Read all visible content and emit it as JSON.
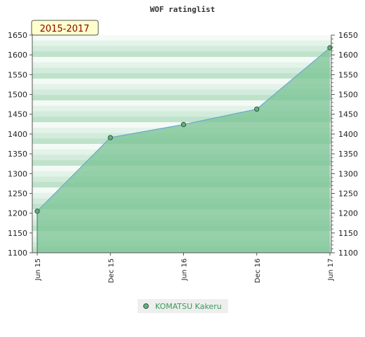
{
  "chart_data": {
    "type": "area",
    "title": "WOF ratinglist",
    "period_label": "2015-2017",
    "x": [
      "Jun 15",
      "Dec 15",
      "Jun 16",
      "Dec 16",
      "Jun 17"
    ],
    "series": [
      {
        "name": "KOMATSU Kakeru",
        "values": [
          1205,
          1391,
          1424,
          1463,
          1618
        ]
      }
    ],
    "ylim": [
      1100,
      1650
    ],
    "yticks": [
      1100,
      1150,
      1200,
      1250,
      1300,
      1350,
      1400,
      1450,
      1500,
      1550,
      1600,
      1650
    ],
    "ytick_labels": [
      "1100",
      "1150",
      "1200",
      "1250",
      "1300",
      "1350",
      "1400",
      "1450",
      "1500",
      "1550",
      "1600",
      "1650"
    ],
    "y_axes": "both",
    "legend_position": "bottom-center",
    "colors": {
      "area_fill": "#7cc496",
      "line": "#6aa8d0",
      "marker": "#5cb276",
      "period_bg": "#ffffcc",
      "period_text": "#8b0000",
      "legend_text": "#3a9a5a"
    }
  }
}
